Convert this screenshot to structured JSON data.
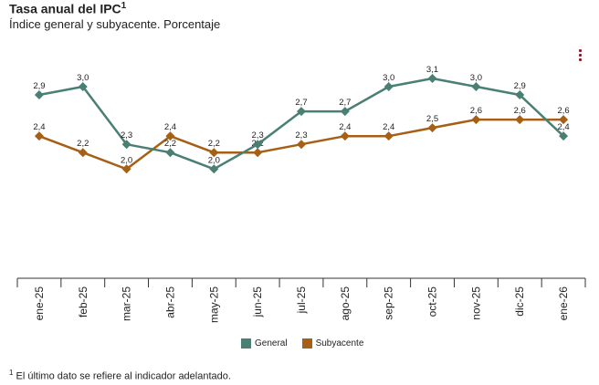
{
  "header": {
    "title": "Tasa anual del IPC",
    "title_sup": "1",
    "subtitle": "Índice general y subyacente. Porcentaje"
  },
  "menu": {
    "icon": "kebab-menu-icon"
  },
  "chart_data": {
    "type": "line",
    "categories": [
      "ene-25",
      "feb-25",
      "mar-25",
      "abr-25",
      "may-25",
      "jun-25",
      "jul-25",
      "ago-25",
      "sep-25",
      "oct-25",
      "nov-25",
      "dic-25",
      "ene-26"
    ],
    "series": [
      {
        "name": "General",
        "color": "#4a7f74",
        "values": [
          2.9,
          3.0,
          2.3,
          2.2,
          2.0,
          2.3,
          2.7,
          2.7,
          3.0,
          3.1,
          3.0,
          2.9,
          2.4
        ],
        "labels": [
          "2,9",
          "3,0",
          "2,3",
          "2,2",
          "2,0",
          "2,3",
          "2,7",
          "2,7",
          "3,0",
          "3,1",
          "3,0",
          "2,9",
          "2,4"
        ]
      },
      {
        "name": "Subyacente",
        "color": "#a65f14",
        "values": [
          2.4,
          2.2,
          2.0,
          2.4,
          2.2,
          2.2,
          2.3,
          2.4,
          2.4,
          2.5,
          2.6,
          2.6,
          2.6
        ],
        "labels": [
          "2,4",
          "2,2",
          "2,0",
          "2,4",
          "2,2",
          "2,2",
          "2,3",
          "2,4",
          "2,4",
          "2,5",
          "2,6",
          "2,6",
          "2,6"
        ]
      }
    ],
    "ylim": [
      0,
      3.5
    ],
    "legend_position": "bottom"
  },
  "footnote": {
    "sup": "1",
    "text": "El último dato se refiere al indicador adelantado."
  }
}
